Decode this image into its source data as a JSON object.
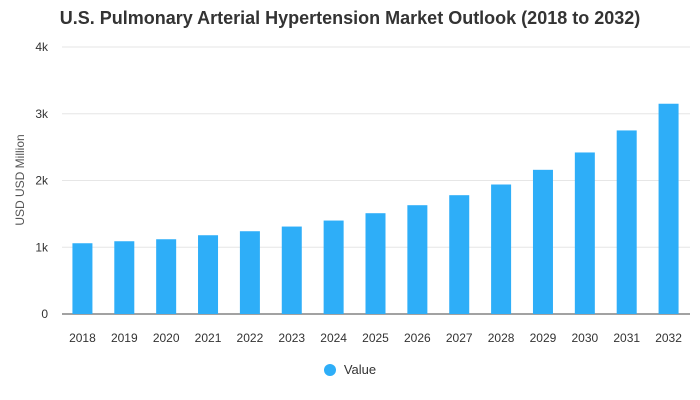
{
  "chart_data": {
    "type": "bar",
    "title": "U.S. Pulmonary Arterial Hypertension Market Outlook (2018 to 2032)",
    "xlabel": "",
    "ylabel": "USD USD Million",
    "categories": [
      "2018",
      "2019",
      "2020",
      "2021",
      "2022",
      "2023",
      "2024",
      "2025",
      "2026",
      "2027",
      "2028",
      "2029",
      "2030",
      "2031",
      "2032"
    ],
    "series": [
      {
        "name": "Value",
        "color": "#2eaef8",
        "values": [
          1060,
          1090,
          1120,
          1180,
          1240,
          1310,
          1400,
          1510,
          1630,
          1780,
          1940,
          2160,
          2420,
          2750,
          3150
        ]
      }
    ],
    "ylim": [
      0,
      4000
    ],
    "yticks": [
      0,
      1000,
      2000,
      3000,
      4000
    ],
    "ytick_labels": [
      "0",
      "1k",
      "2k",
      "3k",
      "4k"
    ],
    "grid": true,
    "legend_position": "bottom-center"
  }
}
